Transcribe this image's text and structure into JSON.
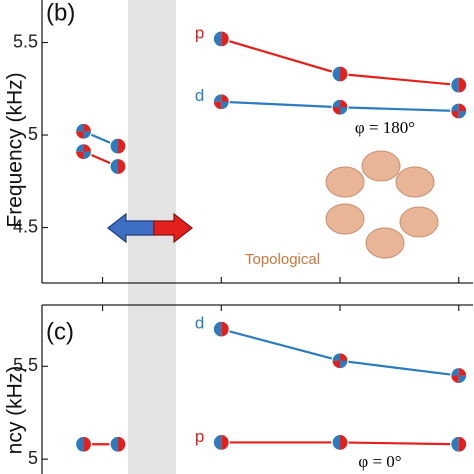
{
  "chart_data": [
    {
      "type": "line",
      "title": "(b)",
      "ylabel": "Frequency (kHz)",
      "xlim": [
        -0.51,
        3.12
      ],
      "xticks": [
        0,
        1,
        2,
        3
      ],
      "ylim": [
        4.2,
        5.73
      ],
      "yticks": [
        4.5,
        5,
        5.5
      ],
      "series": [
        {
          "name": "p",
          "color": "#e3201b",
          "x": [
            1,
            2,
            3
          ],
          "values": [
            5.52,
            5.33,
            5.27
          ]
        },
        {
          "name": "d",
          "color": "#2b7bbf",
          "x": [
            1,
            2,
            3
          ],
          "values": [
            5.18,
            5.15,
            5.13
          ]
        },
        {
          "color": "#2b7bbf",
          "x": [
            -0.16,
            0.13
          ],
          "values": [
            5.02,
            4.94
          ]
        },
        {
          "color": "#e3201b",
          "x": [
            -0.16,
            0.13
          ],
          "values": [
            4.91,
            4.83
          ]
        }
      ],
      "annotations": [
        "φ = 180°",
        "Topological"
      ]
    },
    {
      "type": "line",
      "title": "(c)",
      "ylabel": "ncy (kHz)",
      "xlim": [
        -0.51,
        3.12
      ],
      "xticks": [
        0,
        1,
        2,
        3
      ],
      "ylim": [
        4.92,
        5.83
      ],
      "yticks": [
        5,
        5.5
      ],
      "series": [
        {
          "name": "d",
          "color": "#2b7bbf",
          "x": [
            1,
            2,
            3
          ],
          "values": [
            5.7,
            5.53,
            5.45
          ]
        },
        {
          "name": "p",
          "color": "#e3201b",
          "x": [
            1,
            2,
            3
          ],
          "values": [
            5.09,
            5.09,
            5.08
          ]
        },
        {
          "color": "#e3201b",
          "x": [
            -0.16,
            0.13
          ],
          "values": [
            5.08,
            5.08
          ]
        }
      ],
      "annotations": [
        "φ = 0°"
      ]
    }
  ]
}
